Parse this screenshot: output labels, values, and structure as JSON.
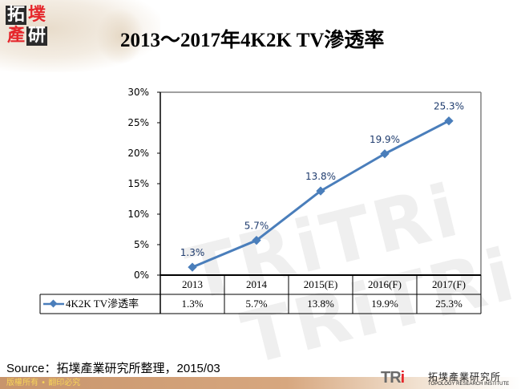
{
  "header": {
    "logo_chars": [
      "拓",
      "墣",
      "產",
      "研"
    ],
    "title": "2013～2017年4K2K TV滲透率"
  },
  "chart_data": {
    "type": "line",
    "title": "2013～2017年4K2K TV滲透率",
    "xlabel": "",
    "ylabel": "",
    "categories": [
      "2013",
      "2014",
      "2015(E)",
      "2016(F)",
      "2017(F)"
    ],
    "series": [
      {
        "name": "4K2K TV滲透率",
        "values": [
          1.3,
          5.7,
          13.8,
          19.9,
          25.3
        ],
        "color": "#4a7ebb"
      }
    ],
    "data_labels": [
      "1.3%",
      "5.7%",
      "13.8%",
      "19.9%",
      "25.3%"
    ],
    "y_ticks": [
      "0%",
      "5%",
      "10%",
      "15%",
      "20%",
      "25%",
      "30%"
    ],
    "ylim": [
      0,
      30
    ],
    "grid": false,
    "legend_position": "data-table"
  },
  "table": {
    "legend_label": "4K2K TV滲透率",
    "headers": [
      "2013",
      "2014",
      "2015(E)",
      "2016(F)",
      "2017(F)"
    ],
    "values": [
      "1.3%",
      "5.7%",
      "13.8%",
      "19.9%",
      "25.3%"
    ]
  },
  "footer": {
    "source": "Source：拓墣產業研究所整理，2015/03",
    "copyright": "版權所有 • 翻印必究",
    "brand_logo": "TRi",
    "brand_cn": "拓墣產業研究所",
    "brand_en": "TOPOLOGY RESEARCH INSTITUTE"
  }
}
